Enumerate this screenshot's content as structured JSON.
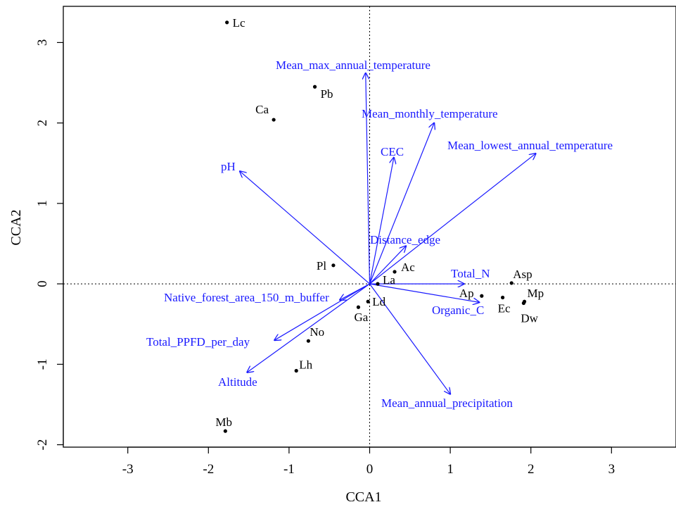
{
  "chart_data": {
    "type": "scatter",
    "title": "",
    "xlabel": "CCA1",
    "ylabel": "CCA2",
    "xlim": [
      -3.8,
      3.8
    ],
    "ylim": [
      -2.03,
      3.45
    ],
    "xticks": [
      -3,
      -2,
      -1,
      0,
      1,
      2,
      3
    ],
    "yticks": [
      -2,
      -1,
      0,
      1,
      2,
      3
    ],
    "reference_lines": {
      "x": 0,
      "y": 0,
      "style": "dotted"
    },
    "grid": false,
    "colors": {
      "sites": "#000000",
      "vectors": "#1a1aff"
    },
    "sites": [
      {
        "name": "Lc",
        "x": -1.77,
        "y": 3.25
      },
      {
        "name": "Pb",
        "x": -0.68,
        "y": 2.45
      },
      {
        "name": "Ca",
        "x": -1.19,
        "y": 2.04
      },
      {
        "name": "Pl",
        "x": -0.45,
        "y": 0.23
      },
      {
        "name": "Ac",
        "x": 0.31,
        "y": 0.15
      },
      {
        "name": "La",
        "x": 0.1,
        "y": 0.0
      },
      {
        "name": "Ld",
        "x": -0.02,
        "y": -0.22
      },
      {
        "name": "Ga",
        "x": -0.14,
        "y": -0.29
      },
      {
        "name": "Asp",
        "x": 1.76,
        "y": 0.01
      },
      {
        "name": "Ap",
        "x": 1.39,
        "y": -0.15
      },
      {
        "name": "Ec",
        "x": 1.65,
        "y": -0.17
      },
      {
        "name": "Mp",
        "x": 1.92,
        "y": -0.22
      },
      {
        "name": "Dw",
        "x": 1.91,
        "y": -0.24
      },
      {
        "name": "No",
        "x": -0.76,
        "y": -0.71
      },
      {
        "name": "Lh",
        "x": -0.91,
        "y": -1.08
      },
      {
        "name": "Mb",
        "x": -1.79,
        "y": -1.83
      }
    ],
    "vectors": [
      {
        "name": "Mean_max_annual_temperature",
        "x": -0.05,
        "y": 2.62
      },
      {
        "name": "Mean_monthly_temperature",
        "x": 0.8,
        "y": 2.0
      },
      {
        "name": "Mean_lowest_annual_temperature",
        "x": 2.06,
        "y": 1.62
      },
      {
        "name": "CEC",
        "x": 0.3,
        "y": 1.57
      },
      {
        "name": "pH",
        "x": -1.61,
        "y": 1.4
      },
      {
        "name": "Distance_edge",
        "x": 0.45,
        "y": 0.47
      },
      {
        "name": "Total_N",
        "x": 1.17,
        "y": 0.0
      },
      {
        "name": "Organic_C",
        "x": 1.36,
        "y": -0.23
      },
      {
        "name": "Native_forest_area_150_m_buffer",
        "x": -0.37,
        "y": -0.2
      },
      {
        "name": "Total_PPFD_per_day",
        "x": -1.18,
        "y": -0.7
      },
      {
        "name": "Altitude",
        "x": -1.52,
        "y": -1.1
      },
      {
        "name": "Mean_annual_precipitation",
        "x": 1.0,
        "y": -1.37
      }
    ]
  }
}
